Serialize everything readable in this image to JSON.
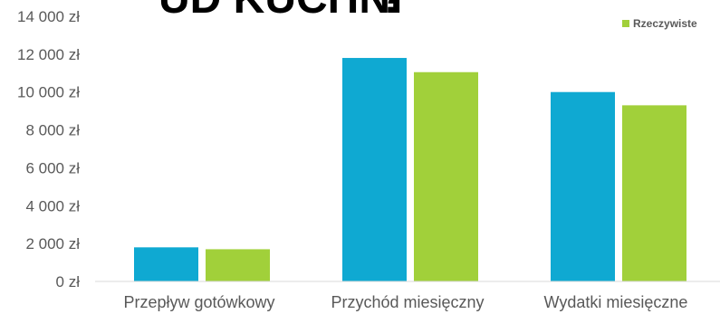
{
  "chart_data": {
    "type": "bar",
    "title": "",
    "cut_off_title_fragment": "UD KUCHNI",
    "xlabel": "",
    "ylabel": "",
    "categories": [
      "Przepływ gotówkowy",
      "Przychód miesięczny",
      "Wydatki miesięczne"
    ],
    "series": [
      {
        "name": "",
        "color": "#0FA9D2",
        "values": [
          1800,
          11800,
          10000
        ]
      },
      {
        "name": "Rzeczywiste",
        "color": "#A1D03A",
        "values": [
          1700,
          11050,
          9300
        ]
      }
    ],
    "ylim": [
      0,
      14000
    ],
    "yticks": [
      0,
      2000,
      4000,
      6000,
      8000,
      10000,
      12000,
      14000
    ],
    "ytick_labels": [
      "0 zł",
      "2 000 zł",
      "4 000 zł",
      "6 000 zł",
      "8 000 zł",
      "10 000 zł",
      "12 000 zł",
      "14 000 zł"
    ],
    "grid": false,
    "legend_position": "top-right"
  }
}
